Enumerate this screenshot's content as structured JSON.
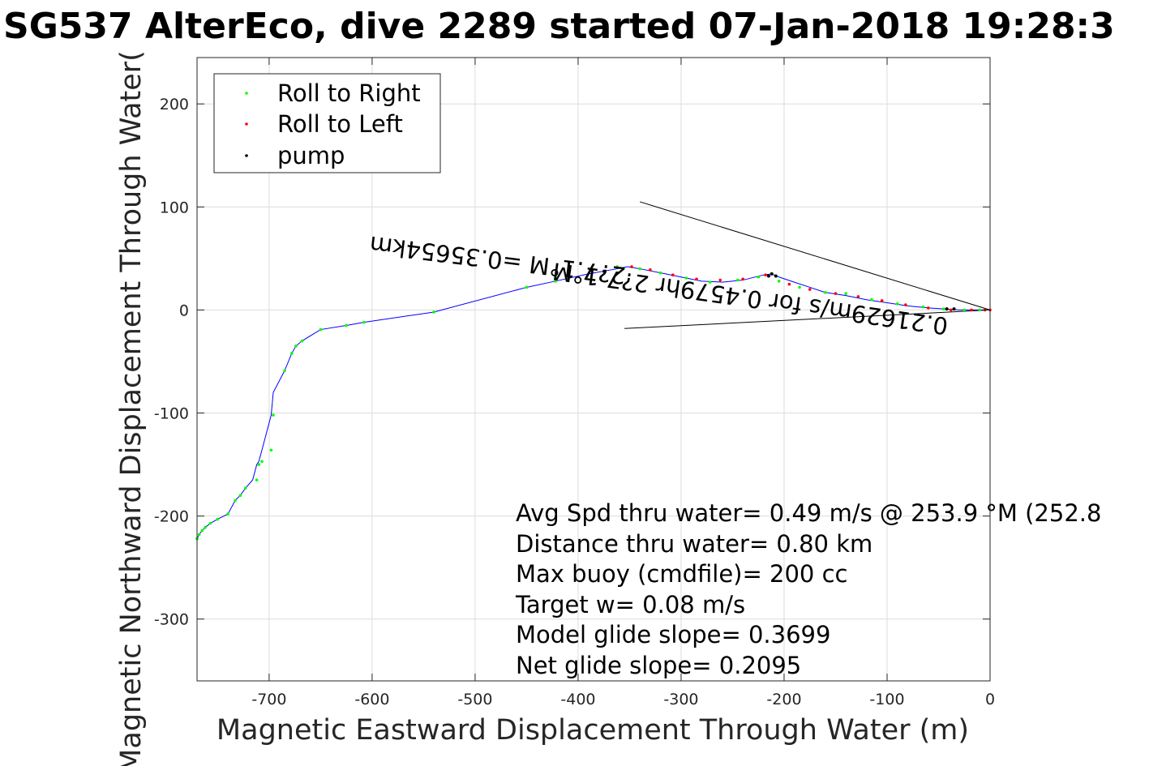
{
  "chart_data": {
    "type": "scatter",
    "title": "SG537 AlterEco, dive 2289 started 07-Jan-2018 19:28:3",
    "xlabel": "Magnetic Eastward Displacement Through Water (m)",
    "ylabel": "Magnetic Northward Displacement Through Water(",
    "xlim": [
      -770,
      0
    ],
    "ylim": [
      -360,
      245
    ],
    "xticks": [
      -700,
      -600,
      -500,
      -400,
      -300,
      -200,
      -100,
      0
    ],
    "yticks": [
      200,
      100,
      0,
      -100,
      -200,
      -300
    ],
    "xtick_labels": [
      "-700",
      "-600",
      "-500",
      "-400",
      "-300",
      "-200",
      "-100",
      "0"
    ],
    "ytick_labels": [
      "200",
      "100",
      "0",
      "-100",
      "-200",
      "-300"
    ],
    "grid": true,
    "legend_placement": "top-left",
    "series": [
      {
        "name": "Roll to Right",
        "color": "#00ff00",
        "marker": "dot",
        "x": [
          -770,
          -768,
          -765,
          -762,
          -757,
          -750,
          -740,
          -733,
          -728,
          -723,
          -712,
          -710,
          -707,
          -698,
          -696,
          -685,
          -678,
          -674,
          -668,
          -650,
          -625,
          -608,
          -540,
          -450,
          -422,
          -362,
          -340,
          -320,
          -295,
          -272,
          -245,
          -225,
          -205,
          -185,
          -160,
          -140,
          -115,
          -90,
          -65,
          -45,
          -25,
          -10
        ],
        "y": [
          -222,
          -218,
          -214,
          -211,
          -207,
          -203,
          -198,
          -185,
          -180,
          -173,
          -165,
          -150,
          -147,
          -136,
          -102,
          -59,
          -42,
          -35,
          -30,
          -19,
          -15,
          -12,
          -2,
          22,
          28,
          42,
          40,
          36,
          31,
          27,
          29,
          32,
          28,
          22,
          17,
          16,
          10,
          6,
          3,
          1,
          0,
          0
        ]
      },
      {
        "name": "Roll to Left",
        "color": "#ff0000",
        "marker": "dot",
        "x": [
          -348,
          -330,
          -308,
          -285,
          -262,
          -240,
          -218,
          -195,
          -175,
          -150,
          -128,
          -105,
          -82,
          -60,
          -38,
          -18,
          -5,
          0
        ],
        "y": [
          42,
          39,
          34,
          30,
          29,
          30,
          34,
          25,
          20,
          16,
          13,
          9,
          5,
          2,
          0,
          0,
          0,
          0
        ]
      },
      {
        "name": "pump",
        "color": "#000000",
        "marker": "dot",
        "x": [
          -215,
          -212,
          -208,
          -42,
          -35
        ],
        "y": [
          33,
          35,
          33,
          1,
          1
        ]
      }
    ],
    "track": {
      "color": "#0000ff",
      "x": [
        -770,
        -768,
        -765,
        -762,
        -757,
        -750,
        -740,
        -733,
        -728,
        -723,
        -716,
        -712,
        -710,
        -707,
        -698,
        -696,
        -685,
        -678,
        -674,
        -668,
        -650,
        -625,
        -608,
        -540,
        -450,
        -422,
        -390,
        -362,
        -352,
        -340,
        -320,
        -300,
        -280,
        -260,
        -240,
        -220,
        -212,
        -205,
        -190,
        -175,
        -160,
        -140,
        -120,
        -100,
        -80,
        -60,
        -45,
        -30,
        -15,
        0
      ],
      "y": [
        -222,
        -218,
        -214,
        -211,
        -207,
        -203,
        -198,
        -185,
        -180,
        -173,
        -165,
        -150,
        -147,
        -136,
        -102,
        -80,
        -59,
        -42,
        -35,
        -30,
        -19,
        -15,
        -12,
        -2,
        22,
        28,
        35,
        40,
        42,
        40,
        36,
        32,
        28,
        27,
        29,
        34,
        35,
        32,
        27,
        22,
        17,
        14,
        10,
        7,
        4,
        2,
        1,
        0,
        0,
        0
      ]
    },
    "current_lines": [
      {
        "color": "#000000",
        "x": [
          -340,
          0
        ],
        "y": [
          105,
          0
        ]
      },
      {
        "color": "#000000",
        "x": [
          -355,
          0
        ],
        "y": [
          -18,
          0
        ]
      }
    ],
    "annotations": [
      {
        "text": "2?7.1°M =0.35654km",
        "x": -353,
        "y": 41,
        "rotation_deg": 187
      },
      {
        "text": "0.21629m/s for 0.4579hr 2?7.1°M",
        "x": -40,
        "y": -8,
        "rotation_deg": 188
      }
    ],
    "stats_lines": [
      "Avg Spd thru water=  0.49 m/s @ 253.9 °M (252.8",
      "Distance thru water=  0.80 km",
      "Max buoy (cmdfile)= 200 cc",
      "Target w= 0.08 m/s",
      "Model glide slope= 0.3699",
      "Net glide slope= 0.2095"
    ]
  }
}
